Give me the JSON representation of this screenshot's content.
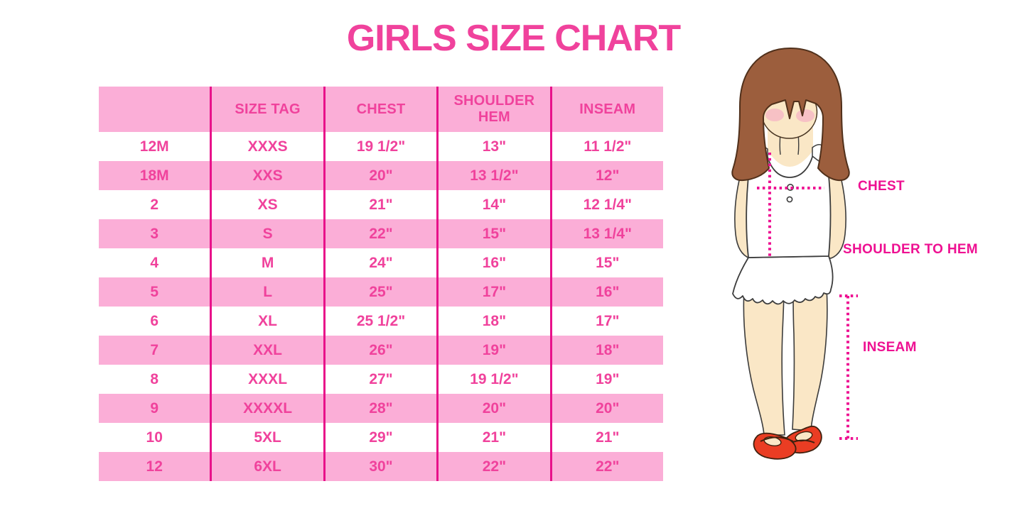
{
  "title": "GIRLS SIZE CHART",
  "table": {
    "columns": [
      "",
      "SIZE TAG",
      "CHEST",
      "SHOULDER HEM",
      "INSEAM"
    ],
    "rows": [
      [
        "12M",
        "XXXS",
        "19 1/2\"",
        "13\"",
        "11 1/2\""
      ],
      [
        "18M",
        "XXS",
        "20\"",
        "13 1/2\"",
        "12\""
      ],
      [
        "2",
        "XS",
        "21\"",
        "14\"",
        "12 1/4\""
      ],
      [
        "3",
        "S",
        "22\"",
        "15\"",
        "13 1/4\""
      ],
      [
        "4",
        "M",
        "24\"",
        "16\"",
        "15\""
      ],
      [
        "5",
        "L",
        "25\"",
        "17\"",
        "16\""
      ],
      [
        "6",
        "XL",
        "25 1/2\"",
        "18\"",
        "17\""
      ],
      [
        "7",
        "XXL",
        "26\"",
        "19\"",
        "18\""
      ],
      [
        "8",
        "XXXL",
        "27\"",
        "19 1/2\"",
        "19\""
      ],
      [
        "9",
        "XXXXL",
        "28\"",
        "20\"",
        "20\""
      ],
      [
        "10",
        "5XL",
        "29\"",
        "21\"",
        "21\""
      ],
      [
        "12",
        "6XL",
        "30\"",
        "22\"",
        "22\""
      ]
    ]
  },
  "figure": {
    "chest_label": "CHEST",
    "shoulder_to_hem_label": "SHOULDER TO HEM",
    "inseam_label": "INSEAM"
  },
  "colors": {
    "accent_pink": "#f0429c",
    "row_pink": "#fbaed7",
    "divider_pink": "#e8118a",
    "label_pink": "#ee1192",
    "hair_brown": "#9c5e3d",
    "hair_outline": "#50301b",
    "skin": "#fae7c6",
    "blush": "#f6bcc4",
    "shoe_red": "#ea3d23",
    "outline_dark": "#3c3c3c"
  }
}
